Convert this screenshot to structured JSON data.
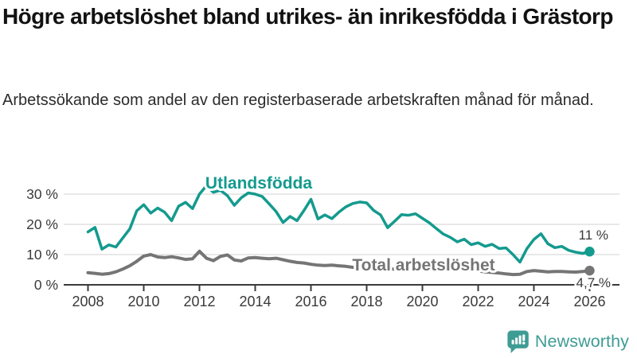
{
  "header": {
    "title": "Högre arbetslöshet bland utrikes- än inrikesfödda i Grästorp",
    "subtitle": "Arbetssökande som andel av den registerbaserade arbetskraften månad för månad."
  },
  "branding": {
    "logo_text": "Newsworthy",
    "logo_icon": "bar-chart-speech-bubble-icon",
    "logo_color": "#3e9c94"
  },
  "chart_data": {
    "type": "line",
    "title": "Högre arbetslöshet bland utrikes- än inrikesfödda i Grästorp",
    "subtitle": "Arbetssökande som andel av den registerbaserade arbetskraften månad för månad.",
    "xlabel": "",
    "ylabel": "",
    "unit": "%",
    "grid": "horizontal",
    "legend_position": "inline-labels",
    "xlim": [
      2007.15,
      2027.1
    ],
    "ylim": [
      0,
      34
    ],
    "x_start": 2008,
    "x_step_years": 0.25,
    "x_ticks": [
      {
        "value": 2008,
        "label": "2008"
      },
      {
        "value": 2010,
        "label": "2010"
      },
      {
        "value": 2012,
        "label": "2012"
      },
      {
        "value": 2014,
        "label": "2014"
      },
      {
        "value": 2016,
        "label": "2016"
      },
      {
        "value": 2018,
        "label": "2018"
      },
      {
        "value": 2020,
        "label": "2020"
      },
      {
        "value": 2022,
        "label": "2022"
      },
      {
        "value": 2024,
        "label": "2024"
      },
      {
        "value": 2026,
        "label": "2026"
      }
    ],
    "y_ticks": [
      {
        "value": 0,
        "label": "0 %"
      },
      {
        "value": 10,
        "label": "10 %"
      },
      {
        "value": 20,
        "label": "20 %"
      },
      {
        "value": 30,
        "label": "30 %"
      }
    ],
    "series": [
      {
        "name": "Total arbetslöshet",
        "color": "#757575",
        "end_label": "4,7 %",
        "end_value": 4.7,
        "values": [
          4,
          3.8,
          3.5,
          3.7,
          4.3,
          5.2,
          6.3,
          7.8,
          9.5,
          10,
          9.2,
          9,
          9.3,
          8.9,
          8.4,
          8.6,
          11.1,
          8.8,
          8,
          9.4,
          9.9,
          8.2,
          7.9,
          8.9,
          9,
          8.8,
          8.6,
          8.8,
          8.3,
          7.8,
          7.4,
          7.2,
          6.8,
          6.5,
          6.4,
          6.5,
          6.3,
          6.1,
          5.8,
          5.6,
          5.4,
          5.2,
          5.1,
          5.3,
          5.2,
          5,
          5.1,
          5.4,
          5.6,
          6.6,
          6.9,
          6.5,
          6.2,
          5.8,
          5.4,
          5,
          4.6,
          4.3,
          4.1,
          3.9,
          3.6,
          3.4,
          3.5,
          4.4,
          4.7,
          4.5,
          4.3,
          4.4,
          4.4,
          4.3,
          4.2,
          4.4,
          4.7
        ]
      },
      {
        "name": "Utlandsfödda",
        "color": "#149a8e",
        "end_label": "11 %",
        "end_value": 11,
        "values": [
          17.5,
          19,
          11.8,
          13.2,
          12.5,
          15.5,
          18.5,
          24.5,
          26.5,
          23.7,
          25.4,
          24,
          21.2,
          26,
          27.3,
          25.2,
          30,
          32.8,
          30.6,
          31.3,
          29.5,
          26.3,
          28.8,
          30.4,
          30,
          29.2,
          26.8,
          24.2,
          20.6,
          22.6,
          21.2,
          24.6,
          28.3,
          21.8,
          23.1,
          21.9,
          24,
          25.8,
          26.9,
          27.4,
          27.1,
          24.6,
          23.1,
          18.9,
          21,
          23.2,
          23,
          23.5,
          22,
          20.5,
          18.6,
          16.8,
          15.7,
          14.2,
          15.1,
          13.3,
          13.9,
          12.7,
          13.4,
          12,
          12.2,
          10,
          7.5,
          12,
          15,
          16.9,
          13.6,
          12.3,
          12.7,
          11.4,
          10.8,
          10.4,
          11
        ]
      }
    ],
    "colors": {
      "grid": "#d9d9d9",
      "axis": "#3a3a3a",
      "tick_text": "#3a3a3a",
      "end_label_text": "#3a3a3a"
    }
  }
}
